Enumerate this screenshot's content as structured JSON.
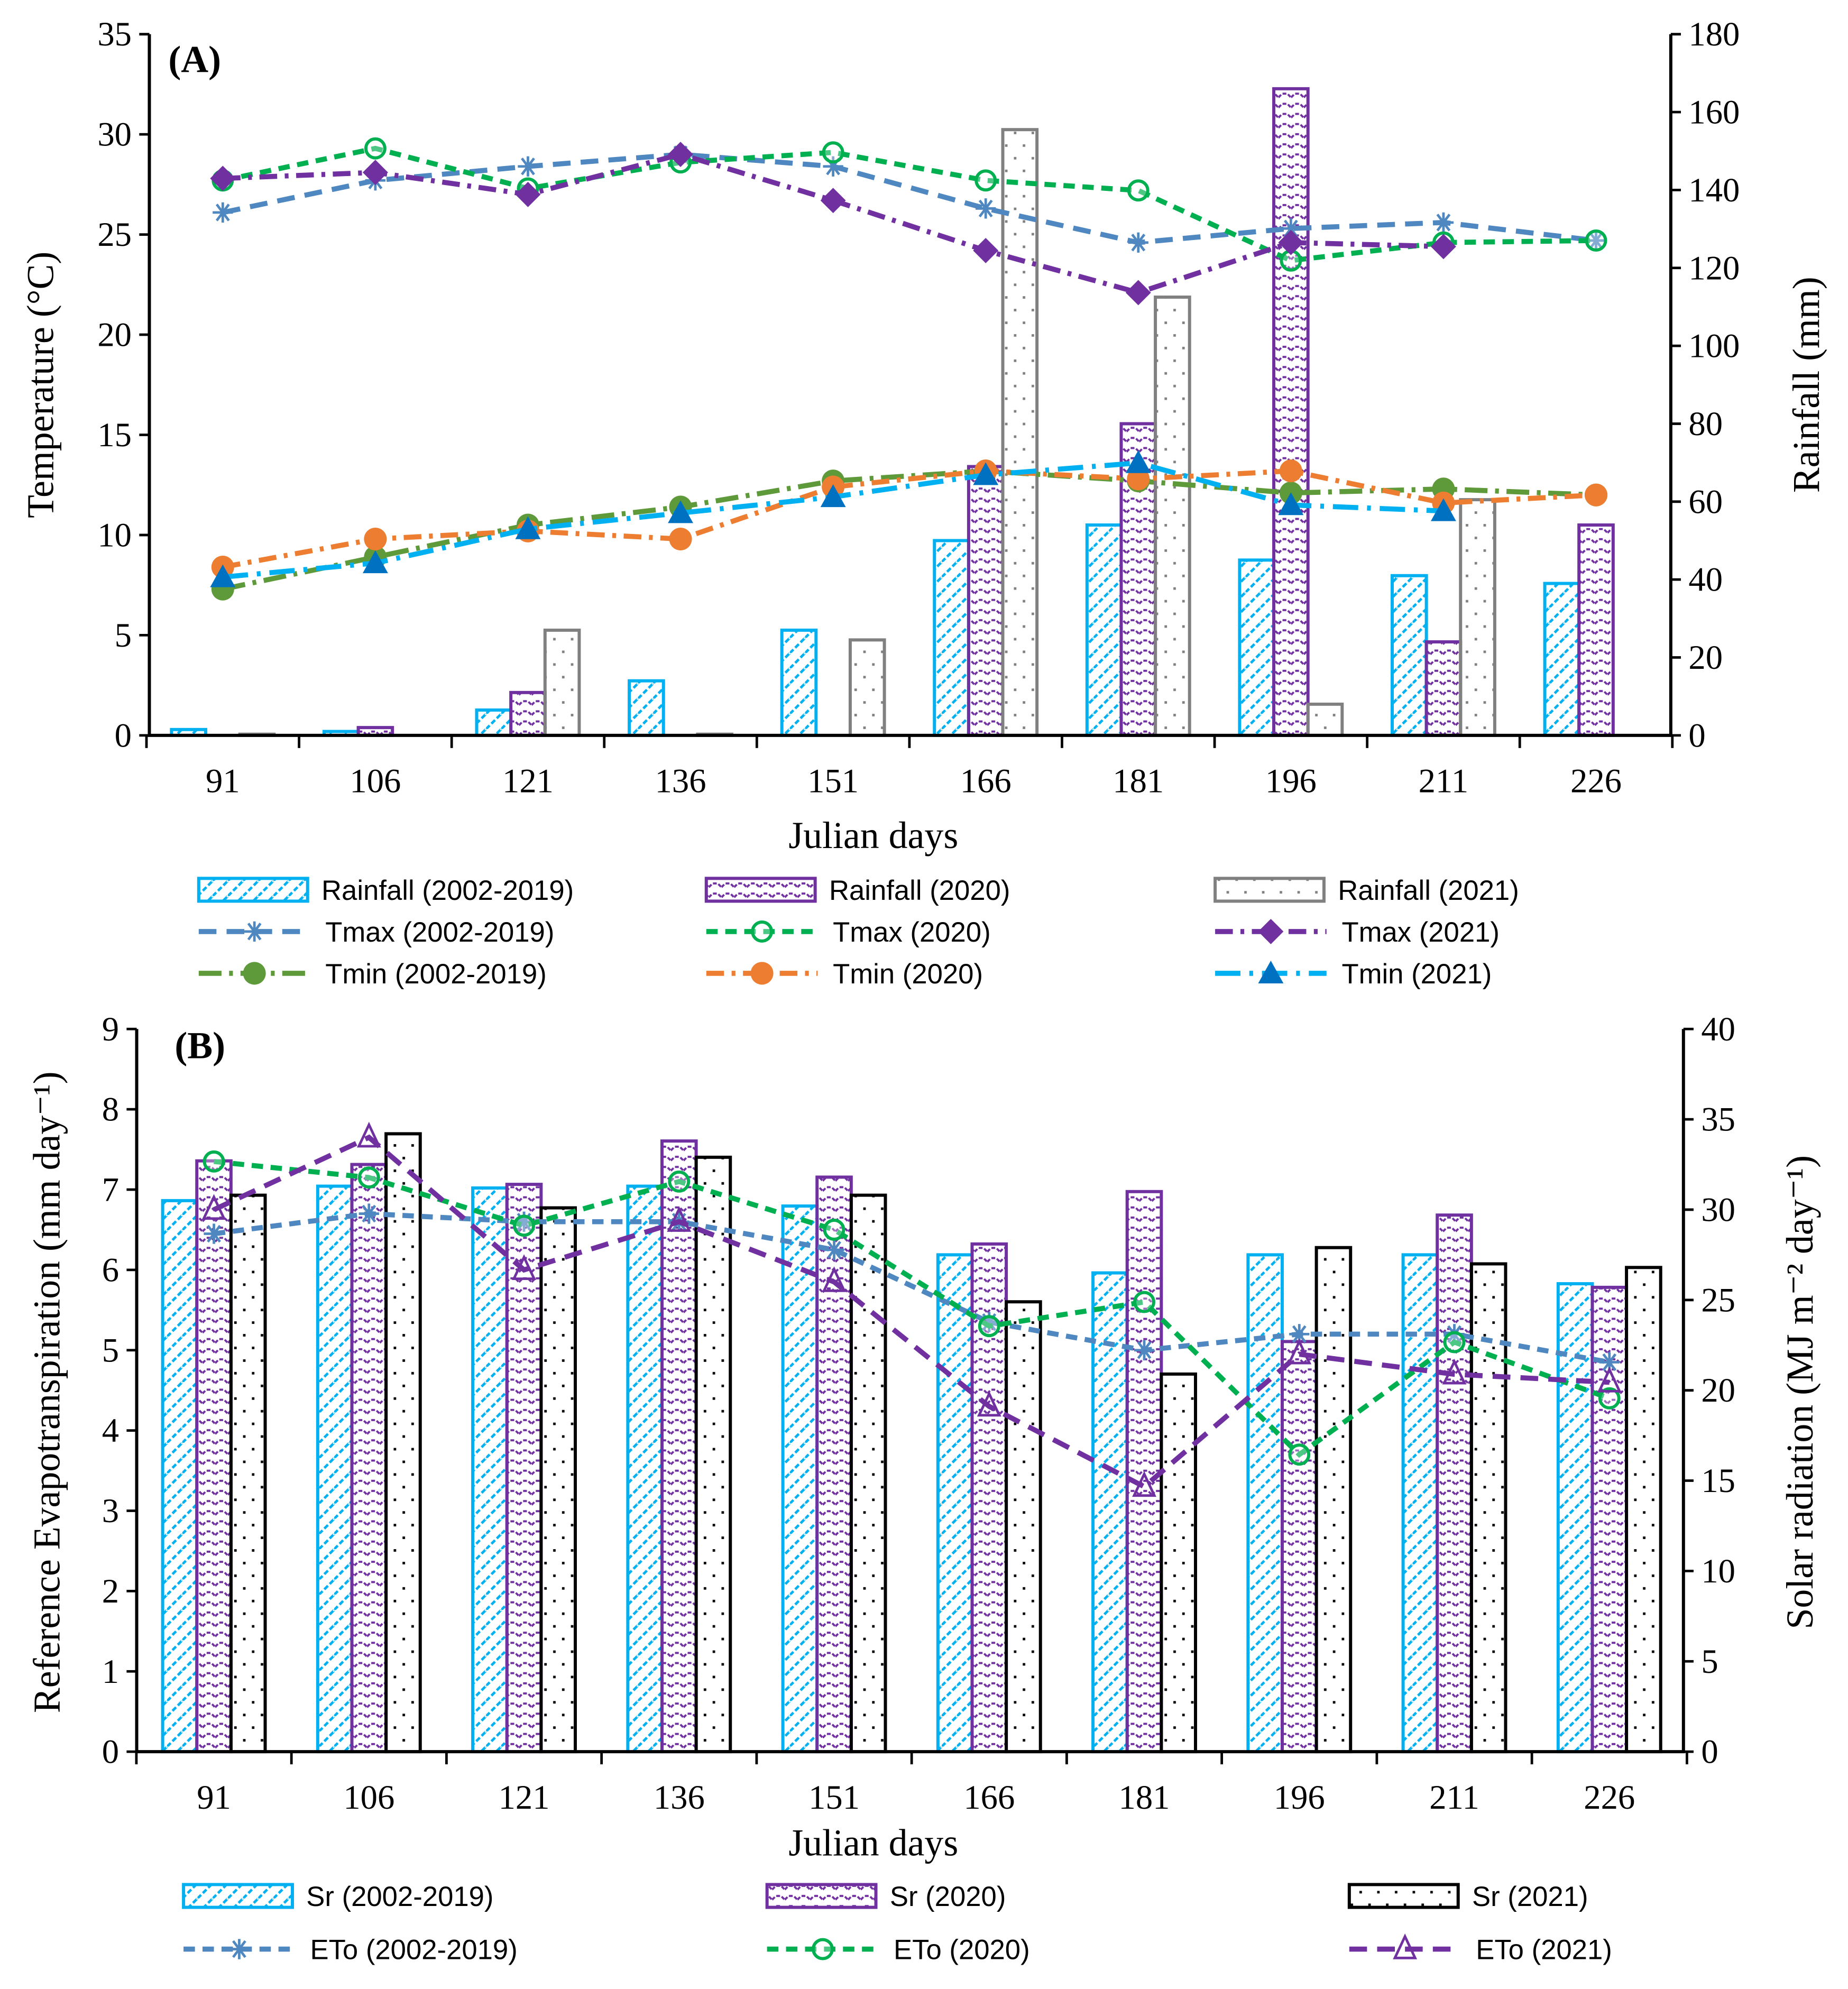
{
  "chart_data": [
    {
      "type": "bar+line",
      "panel_label": "(A)",
      "xlabel": "Julian days",
      "ylabel": "Temperature (°C)",
      "y2label": "Rainfall (mm)",
      "categories": [
        "91",
        "106",
        "121",
        "136",
        "151",
        "166",
        "181",
        "196",
        "211",
        "226"
      ],
      "ylim": [
        0,
        35
      ],
      "yticks": [
        0,
        5,
        10,
        15,
        20,
        25,
        30,
        35
      ],
      "y2lim": [
        0,
        180
      ],
      "y2ticks": [
        0,
        20,
        40,
        60,
        80,
        100,
        120,
        140,
        160,
        180
      ],
      "grid": false,
      "legend_placement": "bottom",
      "bars": [
        {
          "name": "Rainfall (2002-2019)",
          "axis": "right",
          "color": "#00B0F0",
          "pattern": "diagonal",
          "values": [
            1.5,
            1,
            6.5,
            14,
            27,
            50,
            54,
            45,
            41,
            39
          ]
        },
        {
          "name": "Rainfall (2020)",
          "axis": "right",
          "color": "#7030A0",
          "pattern": "wave",
          "values": [
            0,
            2,
            11,
            0,
            0,
            69,
            80,
            166,
            24,
            54
          ]
        },
        {
          "name": "Rainfall (2021)",
          "axis": "right",
          "color": "#808080",
          "pattern": "dots",
          "values": [
            0.3,
            0,
            27,
            0.3,
            24.5,
            155.5,
            112.5,
            8,
            60.5,
            null
          ]
        }
      ],
      "lines": [
        {
          "name": "Tmax (2002-2019)",
          "axis": "left",
          "color": "#4F88C0",
          "dash": "long",
          "marker": "asterisk",
          "values": [
            26.1,
            27.7,
            28.4,
            29.0,
            28.4,
            26.3,
            24.6,
            25.3,
            25.6,
            24.7
          ]
        },
        {
          "name": "Tmax (2020)",
          "axis": "left",
          "color": "#00B050",
          "dash": "dash",
          "marker": "open-circle",
          "values": [
            27.7,
            29.3,
            27.3,
            28.6,
            29.1,
            27.7,
            27.2,
            23.7,
            24.6,
            24.7
          ]
        },
        {
          "name": "Tmax (2021)",
          "axis": "left",
          "color": "#7030A0",
          "dash": "dashdot",
          "marker": "diamond",
          "values": [
            27.8,
            28.1,
            27.0,
            29.0,
            26.7,
            24.2,
            22.1,
            24.6,
            24.4,
            null
          ]
        },
        {
          "name": "Tmin (2002-2019)",
          "axis": "left",
          "color": "#5E9A3A",
          "dash": "longdashdot",
          "marker": "filled-circle",
          "values": [
            7.3,
            8.9,
            10.5,
            11.4,
            12.7,
            13.2,
            12.7,
            12.1,
            12.3,
            12.0
          ]
        },
        {
          "name": "Tmin (2020)",
          "axis": "left",
          "color": "#ED7D31",
          "dash": "dashdot",
          "marker": "filled-circle",
          "values": [
            8.4,
            9.8,
            10.2,
            9.8,
            12.4,
            13.2,
            12.8,
            13.2,
            11.6,
            12.0
          ]
        },
        {
          "name": "Tmin (2021)",
          "axis": "left",
          "color": "#00B0F0",
          "dash": "longdot",
          "marker": "triangle",
          "marker_color": "#0070C0",
          "values": [
            7.9,
            8.6,
            10.3,
            11.1,
            11.9,
            13.0,
            13.6,
            11.5,
            11.2,
            null
          ]
        }
      ]
    },
    {
      "type": "bar+line",
      "panel_label": "(B)",
      "xlabel": "Julian days",
      "ylabel": "Reference Evapotranspiration (mm day⁻¹)",
      "y2label": "Solar radiation (MJ m⁻² day⁻¹)",
      "categories": [
        "91",
        "106",
        "121",
        "136",
        "151",
        "166",
        "181",
        "196",
        "211",
        "226"
      ],
      "ylim": [
        0,
        9
      ],
      "yticks": [
        0,
        1,
        2,
        3,
        4,
        5,
        6,
        7,
        8,
        9
      ],
      "y2lim": [
        0,
        40
      ],
      "y2ticks": [
        0,
        5,
        10,
        15,
        20,
        25,
        30,
        35,
        40
      ],
      "grid": false,
      "legend_placement": "bottom",
      "bars": [
        {
          "name": "Sr (2002-2019)",
          "axis": "right",
          "color": "#00B0F0",
          "pattern": "diagonal",
          "values": [
            30.5,
            31.3,
            31.2,
            31.3,
            30.2,
            27.5,
            26.5,
            27.5,
            27.5,
            25.9
          ]
        },
        {
          "name": "Sr (2020)",
          "axis": "right",
          "color": "#7030A0",
          "pattern": "wave",
          "values": [
            32.7,
            32.5,
            31.4,
            33.8,
            31.8,
            28.1,
            31.0,
            22.7,
            29.7,
            25.7
          ]
        },
        {
          "name": "Sr (2021)",
          "axis": "right",
          "color": "#000000",
          "pattern": "dots",
          "values": [
            30.8,
            34.2,
            30.1,
            32.9,
            30.8,
            24.9,
            20.9,
            27.9,
            27.0,
            26.8
          ]
        }
      ],
      "lines": [
        {
          "name": "ETo (2002-2019)",
          "axis": "left",
          "color": "#4F88C0",
          "dash": "dash",
          "marker": "asterisk",
          "values": [
            6.45,
            6.7,
            6.6,
            6.6,
            6.25,
            5.35,
            5.0,
            5.2,
            5.2,
            4.85
          ]
        },
        {
          "name": "ETo (2020)",
          "axis": "left",
          "color": "#00B050",
          "dash": "dash",
          "marker": "open-circle",
          "values": [
            7.35,
            7.15,
            6.55,
            7.1,
            6.5,
            5.3,
            5.6,
            3.7,
            5.1,
            4.4
          ]
        },
        {
          "name": "ETo (2021)",
          "axis": "left",
          "color": "#7030A0",
          "dash": "long",
          "marker": "open-triangle",
          "values": [
            6.75,
            7.65,
            6.0,
            6.6,
            5.85,
            4.3,
            3.3,
            4.95,
            4.7,
            4.6
          ]
        }
      ]
    }
  ]
}
